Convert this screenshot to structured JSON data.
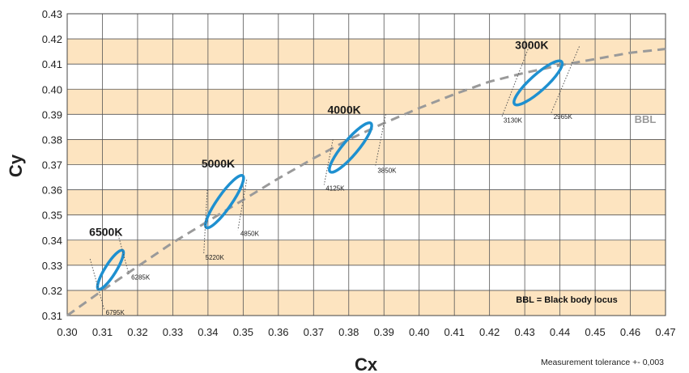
{
  "chart_data": {
    "type": "scatter",
    "title": "",
    "xlabel": "Cx",
    "ylabel": "Cy",
    "xlim": [
      0.3,
      0.47
    ],
    "ylim": [
      0.31,
      0.43
    ],
    "x_ticks": [
      "0.30",
      "0.31",
      "0.32",
      "0.33",
      "0.34",
      "0.35",
      "0.36",
      "0.37",
      "0.38",
      "0.39",
      "0.40",
      "0.41",
      "0.42",
      "0.43",
      "0.44",
      "0.45",
      "0.46",
      "0.47"
    ],
    "y_ticks": [
      "0.31",
      "0.32",
      "0.33",
      "0.34",
      "0.35",
      "0.36",
      "0.37",
      "0.38",
      "0.39",
      "0.40",
      "0.41",
      "0.42",
      "0.43"
    ],
    "grid": true,
    "band_color": "#fde4c0",
    "ellipse_color": "#1e90d0",
    "bbl": {
      "label": "BBL",
      "color": "#9a9a9a",
      "x": [
        0.3,
        0.31,
        0.32,
        0.33,
        0.34,
        0.35,
        0.36,
        0.37,
        0.38,
        0.39,
        0.4,
        0.41,
        0.42,
        0.43,
        0.44,
        0.45,
        0.46,
        0.47
      ],
      "y": [
        0.31,
        0.32,
        0.3295,
        0.339,
        0.3475,
        0.356,
        0.3645,
        0.3725,
        0.38,
        0.3865,
        0.3925,
        0.398,
        0.403,
        0.4065,
        0.4095,
        0.412,
        0.4145,
        0.416
      ]
    },
    "targets": [
      {
        "label": "6500K",
        "cx": 0.3123,
        "cy": 0.3282,
        "rx": 0.0065,
        "ry": 0.0022,
        "angle": 58,
        "tol_left": {
          "label": "6795K",
          "x1": 0.3065,
          "y1": 0.3325,
          "x2": 0.3105,
          "y2": 0.3125
        },
        "tol_right": {
          "label": "6285K",
          "x1": 0.3145,
          "y1": 0.342,
          "x2": 0.3175,
          "y2": 0.3265
        }
      },
      {
        "label": "5000K",
        "cx": 0.3447,
        "cy": 0.3553,
        "rx": 0.009,
        "ry": 0.0028,
        "angle": 55,
        "tol_left": {
          "label": "5220K",
          "x1": 0.3398,
          "y1": 0.36,
          "x2": 0.3388,
          "y2": 0.3345
        },
        "tol_right": {
          "label": "4850K",
          "x1": 0.351,
          "y1": 0.364,
          "x2": 0.3485,
          "y2": 0.344
        }
      },
      {
        "label": "4000K",
        "cx": 0.3805,
        "cy": 0.3768,
        "rx": 0.009,
        "ry": 0.003,
        "angle": 50,
        "tol_left": {
          "label": "4125K",
          "x1": 0.3755,
          "y1": 0.38,
          "x2": 0.373,
          "y2": 0.362
        },
        "tol_right": {
          "label": "3850K",
          "x1": 0.3905,
          "y1": 0.39,
          "x2": 0.3875,
          "y2": 0.369
        }
      },
      {
        "label": "3000K",
        "cx": 0.4338,
        "cy": 0.4025,
        "rx": 0.009,
        "ry": 0.0032,
        "angle": 42,
        "tol_left": {
          "label": "3130K",
          "x1": 0.4315,
          "y1": 0.418,
          "x2": 0.4235,
          "y2": 0.389
        },
        "tol_right": {
          "label": "2965K",
          "x1": 0.4455,
          "y1": 0.417,
          "x2": 0.4375,
          "y2": 0.3905
        }
      }
    ],
    "legend_note": "BBL = Black body locus",
    "footnote": "Measurement tolerance +- 0,003"
  }
}
